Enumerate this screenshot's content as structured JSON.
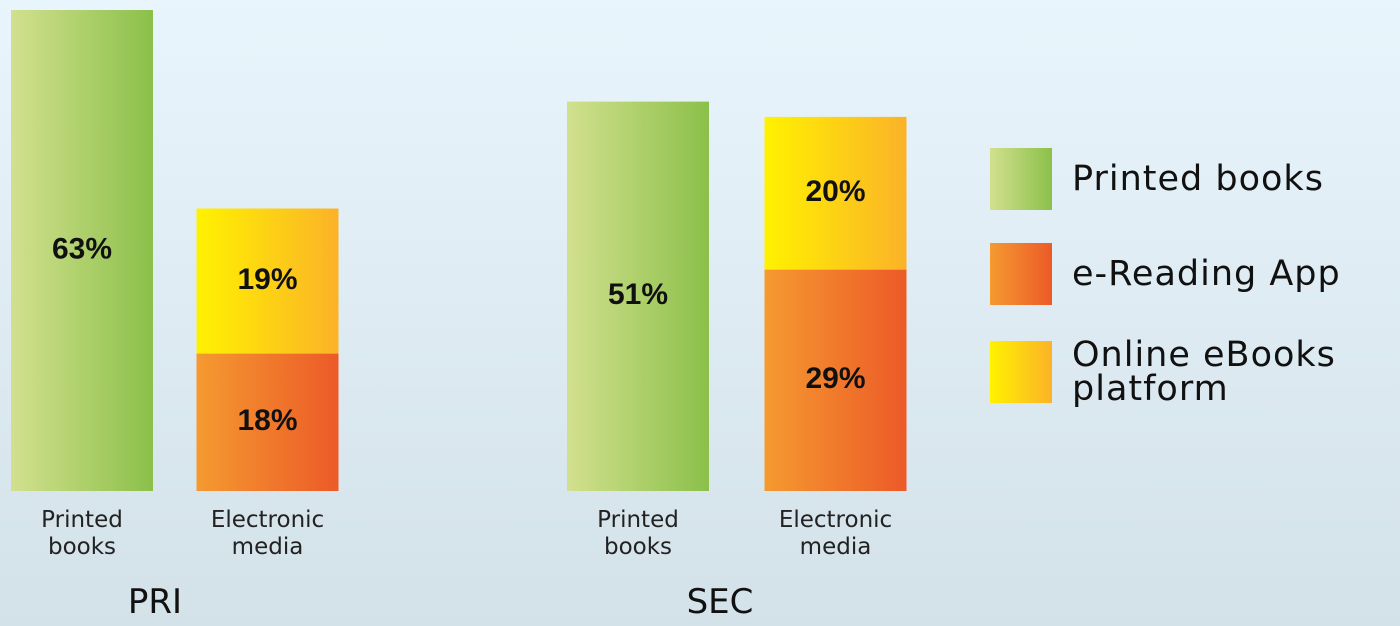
{
  "chart_data": {
    "type": "bar",
    "stacked": true,
    "groups": [
      "PRI",
      "SEC"
    ],
    "categories": [
      "Printed books",
      "Electronic media",
      "Printed books",
      "Electronic media"
    ],
    "category_group": [
      0,
      0,
      1,
      1
    ],
    "series": [
      {
        "name": "Printed books",
        "color": [
          "#d2e08e",
          "#8bc04a"
        ],
        "values": [
          63,
          null,
          51,
          null
        ],
        "value_labels": [
          "63%",
          null,
          "51%",
          null
        ]
      },
      {
        "name": "e-Reading App",
        "color": [
          "#f59a30",
          "#ec5a28"
        ],
        "values": [
          null,
          18,
          null,
          29
        ],
        "value_labels": [
          null,
          "18%",
          null,
          "29%"
        ]
      },
      {
        "name": "Online eBooks platform",
        "color": [
          "#fff200",
          "#fbb228"
        ],
        "values": [
          null,
          19,
          null,
          20
        ],
        "value_labels": [
          null,
          "19%",
          null,
          "20%"
        ]
      }
    ]
  }
}
